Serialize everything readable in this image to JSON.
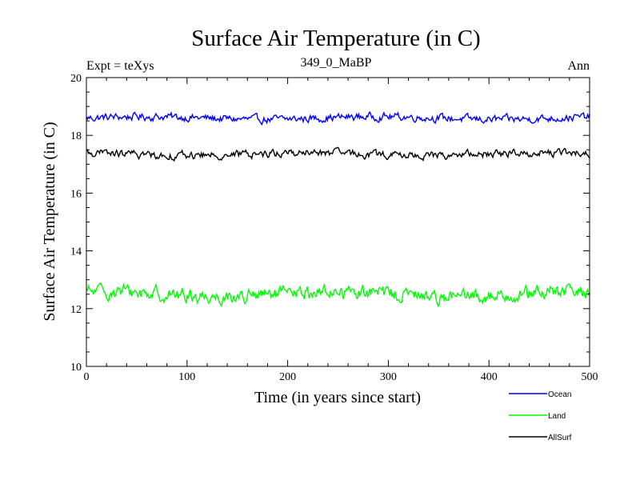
{
  "chart_data": {
    "type": "line",
    "title": "Surface Air Temperature (in C)",
    "subtitle_left": "Expt = teXys",
    "subtitle_center": "349_0_MaBP",
    "subtitle_right": "Ann",
    "xlabel": "Time (in years since start)",
    "ylabel": "Surface Air Temperature (in C)",
    "xlim": [
      0,
      500
    ],
    "ylim": [
      10,
      20
    ],
    "xticks": [
      0,
      100,
      200,
      300,
      400,
      500
    ],
    "yticks": [
      10,
      12,
      14,
      16,
      18,
      20
    ],
    "grid": false,
    "legend_position": "below-right",
    "n_points": 500,
    "series": [
      {
        "name": "Ocean",
        "color": "#0000ff",
        "mean": 18.6,
        "amplitude": 0.12,
        "min": 18.3,
        "max": 18.85
      },
      {
        "name": "Land",
        "color": "#00ff00",
        "mean": 12.5,
        "amplitude": 0.22,
        "min": 11.85,
        "max": 13.05
      },
      {
        "name": "AllSurf",
        "color": "#000000",
        "mean": 17.35,
        "amplitude": 0.12,
        "min": 17.05,
        "max": 17.6
      }
    ]
  }
}
